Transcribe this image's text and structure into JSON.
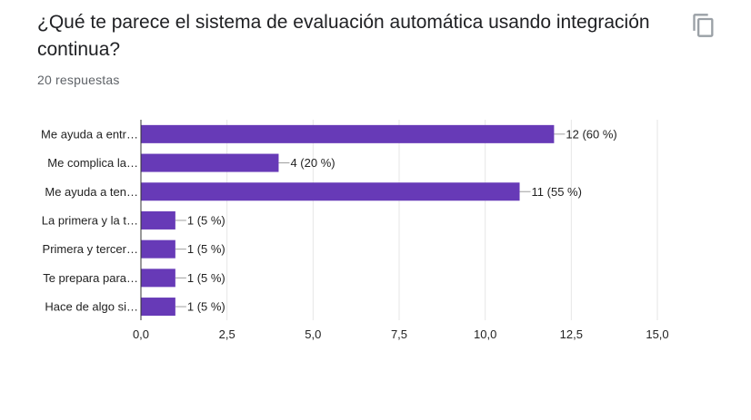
{
  "question": {
    "title": "¿Qué te parece el sistema de evaluación automática usando integración continua?",
    "responses": "20 respuestas"
  },
  "icons": {
    "copy": "copy-icon"
  },
  "colors": {
    "bar": "#673ab7",
    "grid": "#e6e6e6",
    "axis": "#333333",
    "text": "#222222"
  },
  "chart_data": {
    "type": "bar",
    "orientation": "horizontal",
    "categories": [
      "Me ayuda a entr…",
      "Me complica la…",
      "Me ayuda a ten…",
      "La primera y la t…",
      "Primera y tercer…",
      "Te prepara para…",
      "Hace de algo si…"
    ],
    "values": [
      12,
      4,
      11,
      1,
      1,
      1,
      1
    ],
    "labels": [
      "12 (60 %)",
      "4 (20 %)",
      "11 (55 %)",
      "1 (5 %)",
      "1 (5 %)",
      "1 (5 %)",
      "1 (5 %)"
    ],
    "xlim": [
      0,
      15
    ],
    "xticks": [
      "0,0",
      "2,5",
      "5,0",
      "7,5",
      "10,0",
      "12,5",
      "15,0"
    ],
    "grid": true
  }
}
